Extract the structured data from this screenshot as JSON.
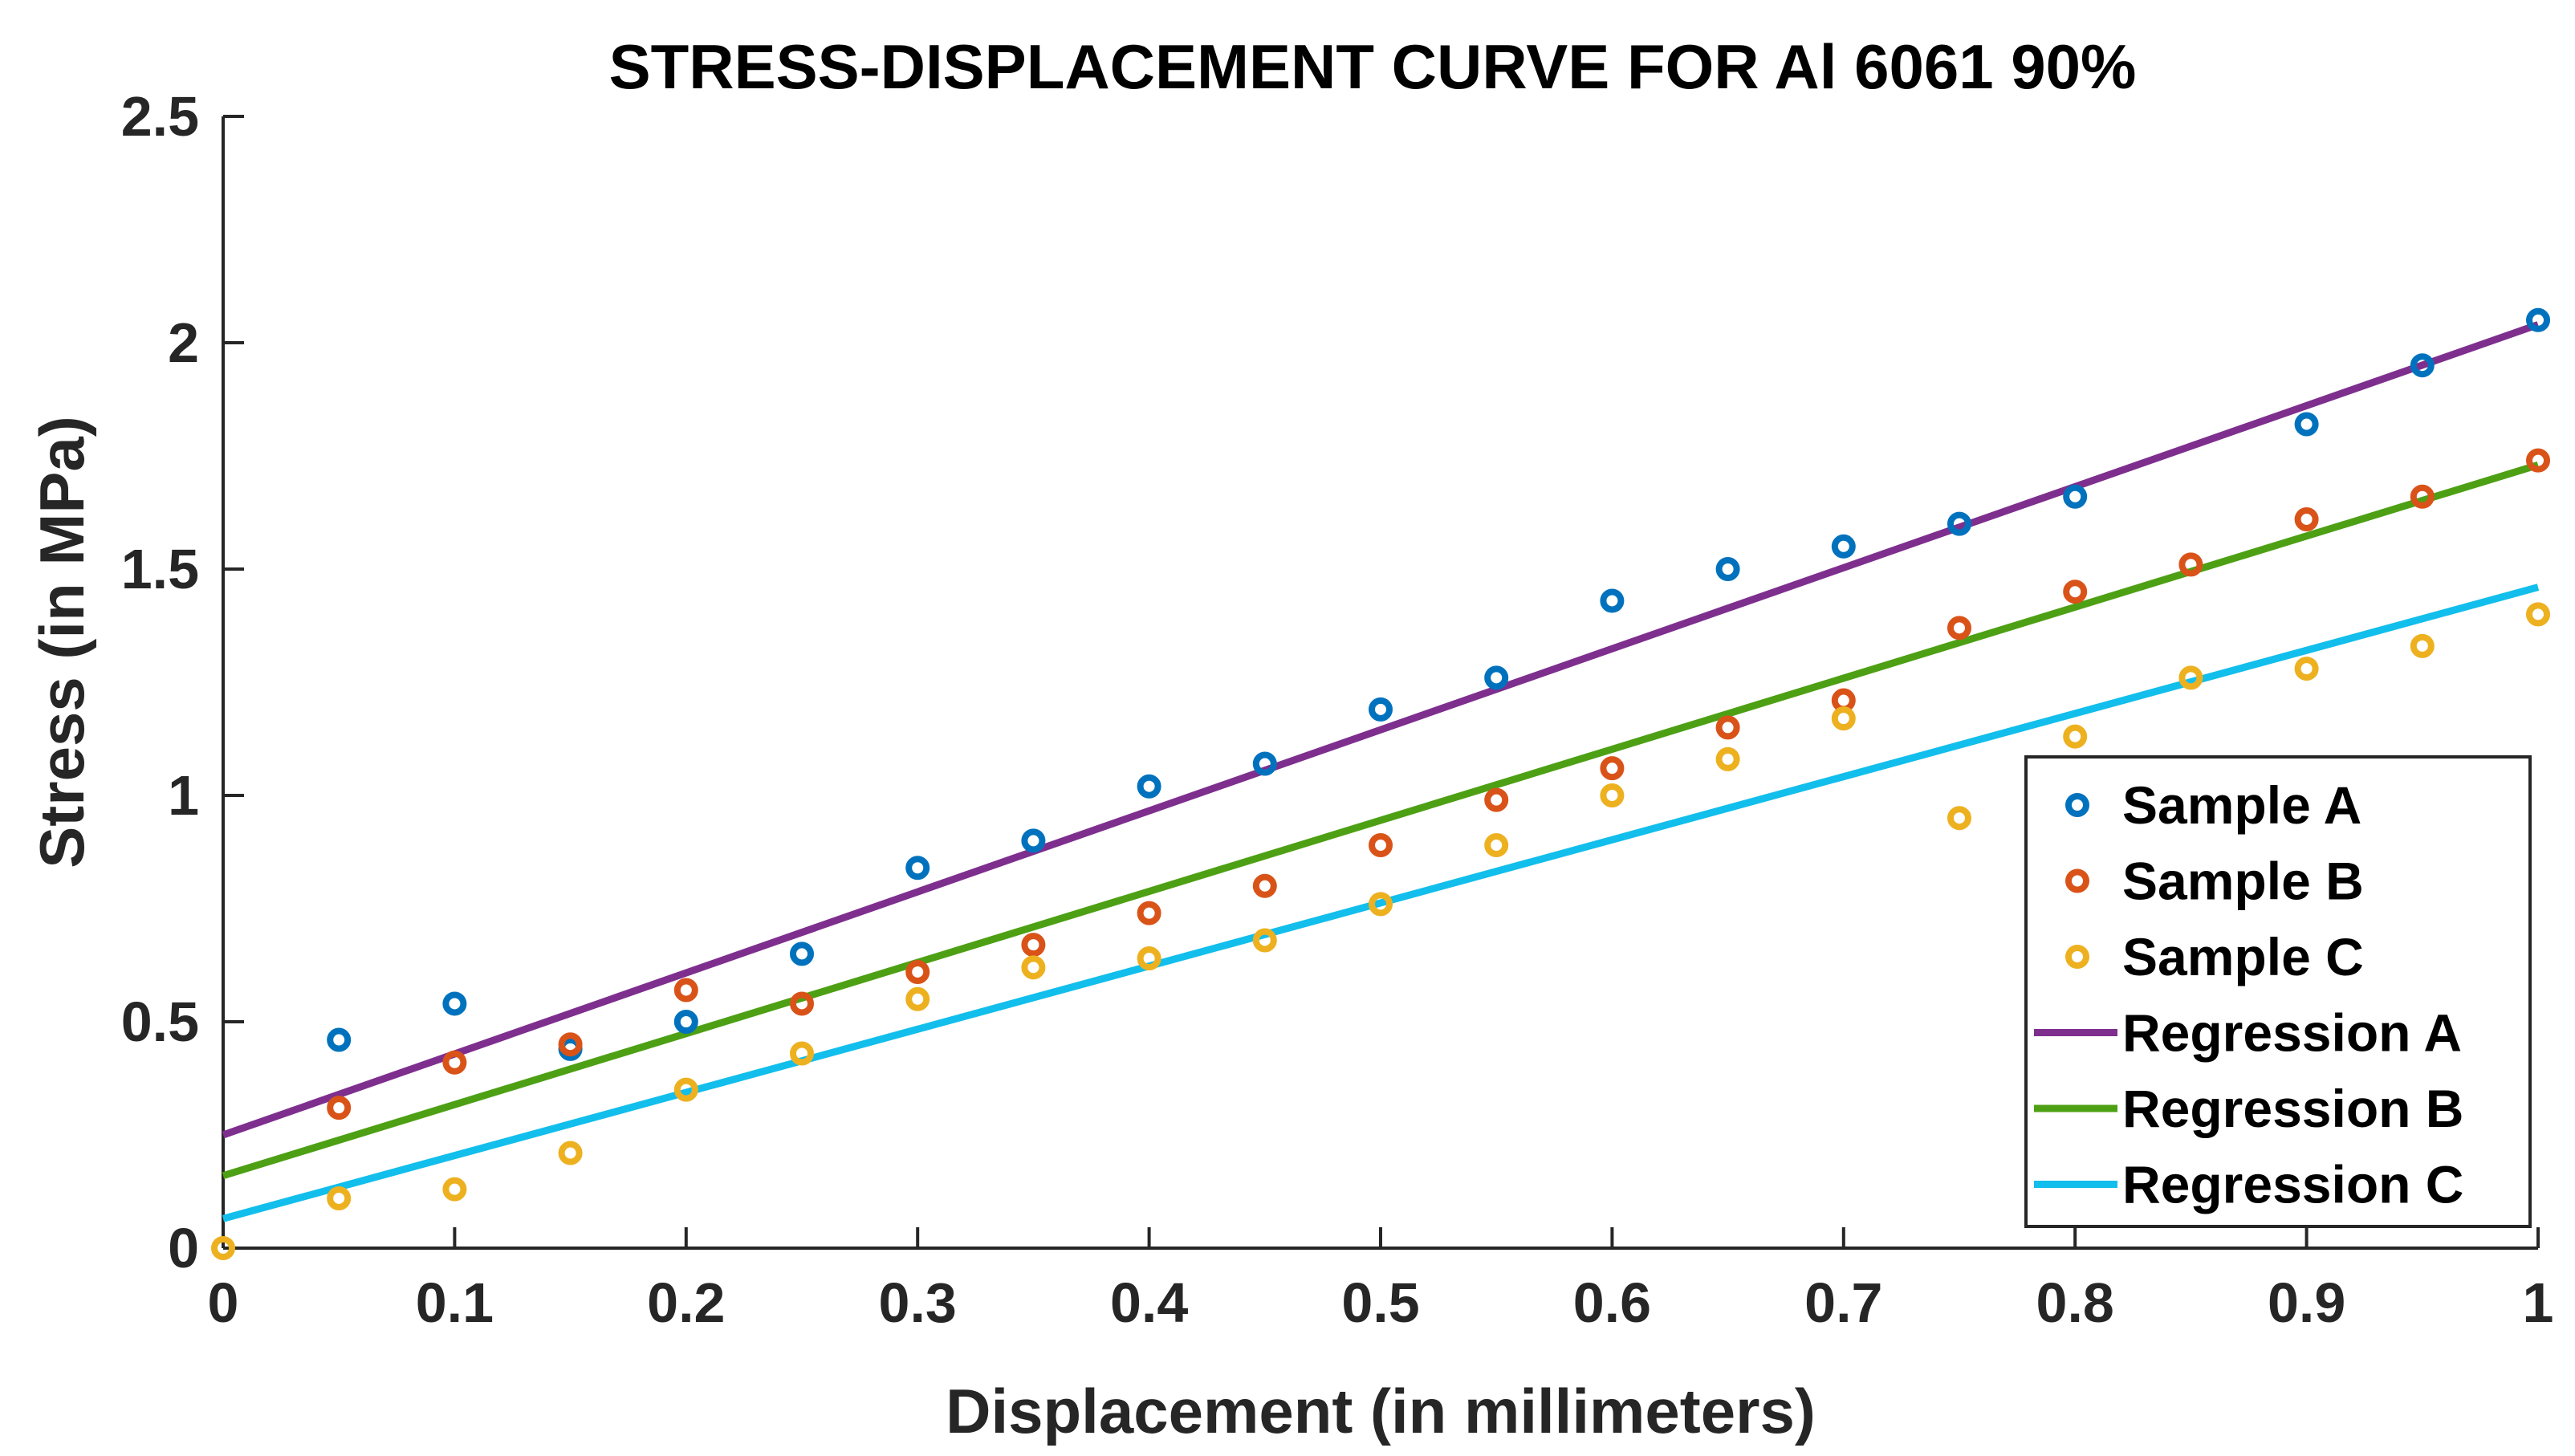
{
  "chart_data": {
    "type": "scatter",
    "title": "STRESS-DISPLACEMENT CURVE FOR Al 6061 90%",
    "xlabel": "Displacement (in millimeters)",
    "ylabel": "Stress (in MPa)",
    "xlim": [
      0,
      1
    ],
    "ylim": [
      0,
      2.5
    ],
    "xticks": [
      0,
      0.1,
      0.2,
      0.3,
      0.4,
      0.5,
      0.6,
      0.7,
      0.8,
      0.9,
      1
    ],
    "xtick_labels": [
      "0",
      "0.1",
      "0.2",
      "0.3",
      "0.4",
      "0.5",
      "0.6",
      "0.7",
      "0.8",
      "0.9",
      "1"
    ],
    "yticks": [
      0,
      0.5,
      1,
      1.5,
      2,
      2.5
    ],
    "ytick_labels": [
      "0",
      "0.5",
      "1",
      "1.5",
      "2",
      "2.5"
    ],
    "grid": false,
    "legend_position": "bottom-right",
    "series": [
      {
        "name": "Sample A",
        "kind": "scatter",
        "color": "#0072BD",
        "x": [
          0.05,
          0.1,
          0.15,
          0.2,
          0.25,
          0.3,
          0.35,
          0.4,
          0.45,
          0.5,
          0.55,
          0.6,
          0.65,
          0.7,
          0.75,
          0.8,
          0.9,
          0.95,
          1.0
        ],
        "y": [
          0.46,
          0.54,
          0.44,
          0.5,
          0.65,
          0.84,
          0.9,
          1.02,
          1.07,
          1.19,
          1.26,
          1.43,
          1.5,
          1.55,
          1.6,
          1.66,
          1.82,
          1.95,
          2.05
        ]
      },
      {
        "name": "Sample B",
        "kind": "scatter",
        "color": "#D95319",
        "x": [
          0.05,
          0.1,
          0.15,
          0.2,
          0.25,
          0.3,
          0.35,
          0.4,
          0.45,
          0.5,
          0.55,
          0.6,
          0.65,
          0.7,
          0.75,
          0.8,
          0.85,
          0.9,
          0.95,
          1.0
        ],
        "y": [
          0.31,
          0.41,
          0.45,
          0.57,
          0.54,
          0.61,
          0.67,
          0.74,
          0.8,
          0.89,
          0.99,
          1.06,
          1.15,
          1.21,
          1.37,
          1.45,
          1.51,
          1.61,
          1.66,
          1.74
        ]
      },
      {
        "name": "Sample C",
        "kind": "scatter",
        "color": "#EDB120",
        "x": [
          0.0,
          0.05,
          0.1,
          0.15,
          0.2,
          0.25,
          0.3,
          0.35,
          0.4,
          0.45,
          0.5,
          0.55,
          0.6,
          0.65,
          0.7,
          0.75,
          0.8,
          0.85,
          0.9,
          0.95,
          1.0
        ],
        "y": [
          0.0,
          0.11,
          0.13,
          0.21,
          0.35,
          0.43,
          0.55,
          0.62,
          0.64,
          0.68,
          0.76,
          0.89,
          1.0,
          1.08,
          1.17,
          0.95,
          1.13,
          1.26,
          1.28,
          1.33,
          1.4
        ]
      },
      {
        "name": "Regression A",
        "kind": "line",
        "color": "#7E2F8E",
        "x": [
          0,
          1
        ],
        "y": [
          0.25,
          2.04
        ]
      },
      {
        "name": "Regression B",
        "kind": "line",
        "color": "#4DA014",
        "x": [
          0,
          1
        ],
        "y": [
          0.16,
          1.73
        ]
      },
      {
        "name": "Regression C",
        "kind": "line",
        "color": "#12BEEB",
        "x": [
          0,
          1
        ],
        "y": [
          0.065,
          1.46
        ]
      }
    ]
  }
}
